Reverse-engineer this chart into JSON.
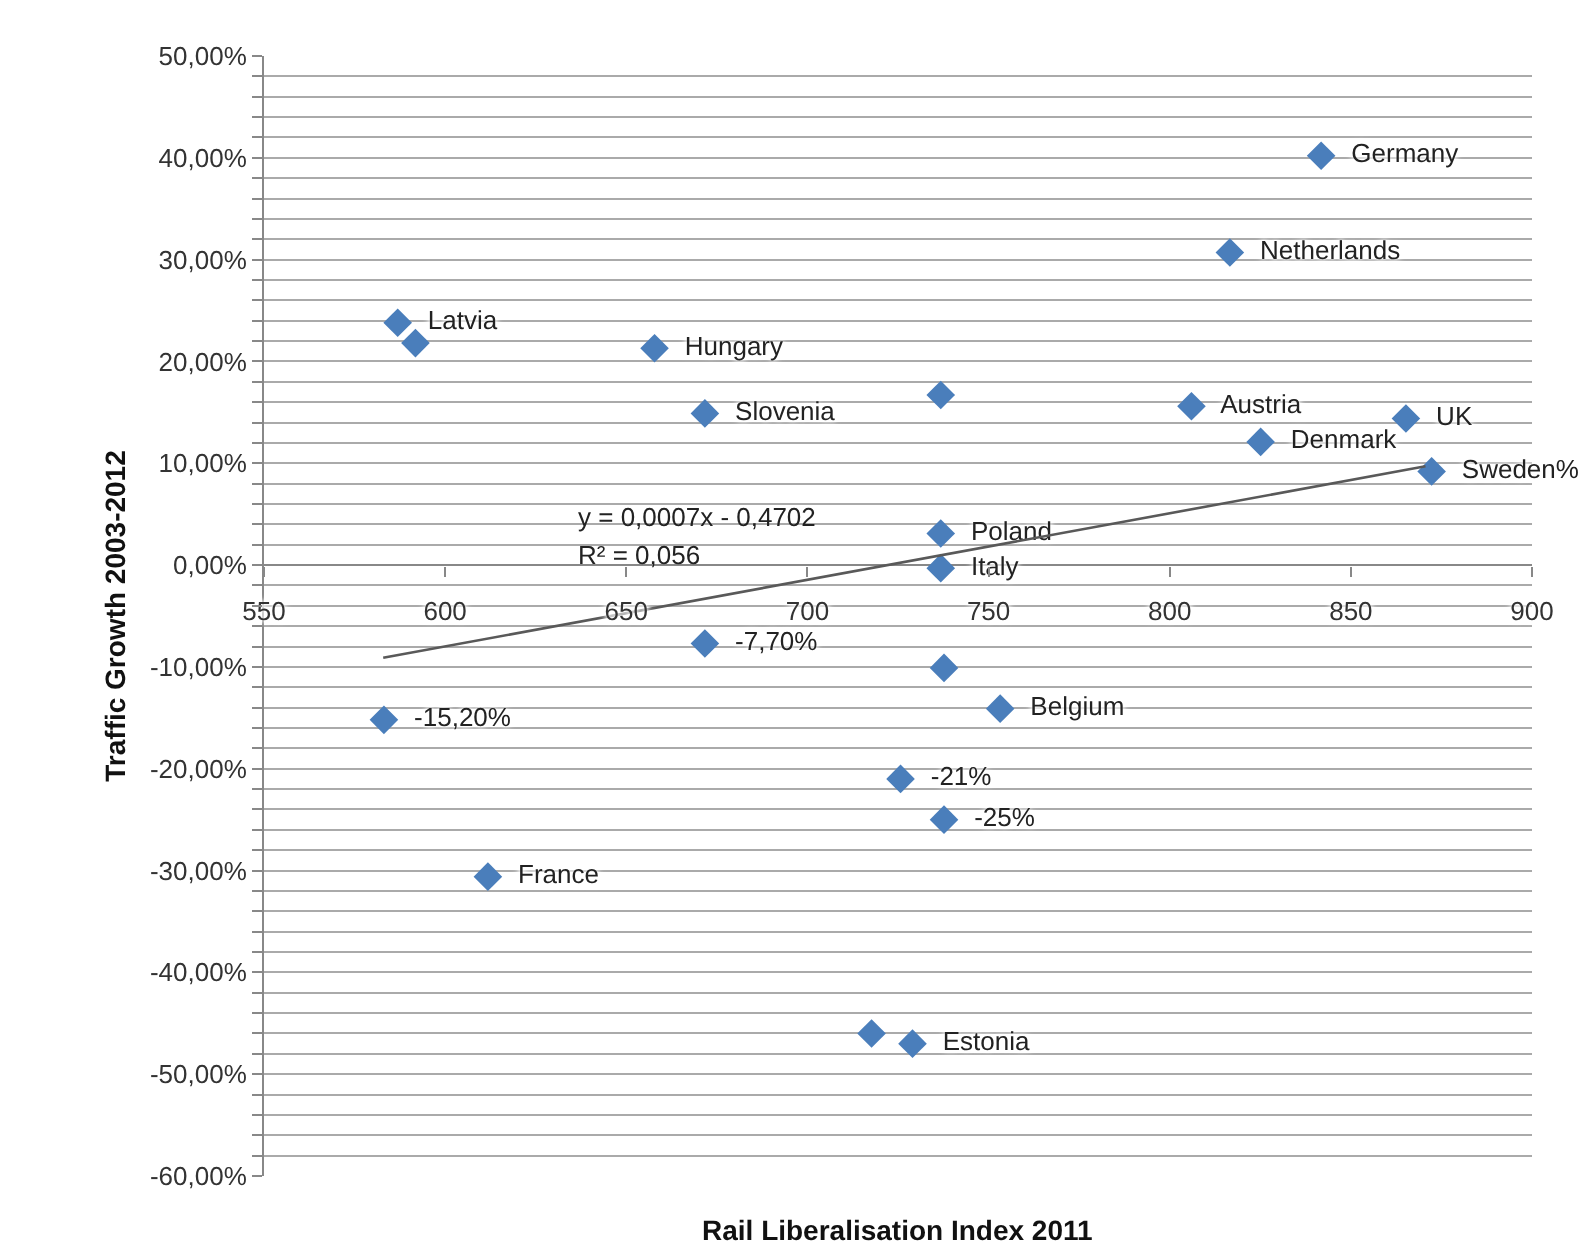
{
  "chart_data": {
    "type": "scatter",
    "xlabel": "Rail Liberalisation Index 2011",
    "ylabel": "Traffic Growth 2003-2012",
    "x": [
      841.8,
      816.6,
      586.9,
      591.8,
      657.8,
      671.7,
      736.8,
      806,
      865.2,
      825.1,
      872.3,
      736.8,
      736.8,
      671.7,
      737.7,
      753.2,
      583.1,
      725.7,
      737.7,
      611.8,
      717.7,
      729
    ],
    "series": [
      {
        "type": "scatter",
        "color": "#4a7ebb",
        "marker": "diamond",
        "values": [
          40.2,
          30.7,
          23.8,
          21.8,
          21.3,
          14.9,
          16.7,
          15.6,
          14.4,
          12.1,
          9.2,
          3.1,
          -0.3,
          -7.7,
          -10.1,
          -14.1,
          -15.2,
          -21.0,
          -25.0,
          -30.6,
          -46.0,
          -47.0
        ],
        "value_labels": [
          "Germany",
          "Netherlands",
          "Latvia",
          null,
          "Hungary",
          "Slovenia",
          null,
          "Austria",
          "UK",
          "Denmark",
          "Sweden%",
          "Poland",
          "Italy",
          "-7,70%",
          null,
          "Belgium",
          "-15,20%",
          "-21%",
          "-25%",
          "France",
          null,
          "Estonia"
        ]
      },
      {
        "type": "line",
        "color": "#595959",
        "marker": "none",
        "line_style": "solid",
        "x": [
          582.9,
          870.6
        ],
        "values": [
          -9.1,
          9.7
        ]
      }
    ],
    "annotations": [
      "y = 0,0007x - 0,4702",
      "R² = 0,056"
    ],
    "xlim": [
      550,
      900
    ],
    "xticks": [
      550,
      600,
      650,
      700,
      750,
      800,
      850,
      900
    ],
    "ylim": [
      -60,
      50
    ],
    "yticks": [
      {
        "value": -60,
        "label": "-60,00%"
      },
      {
        "value": -58,
        "label": null
      },
      {
        "value": -56,
        "label": null
      },
      {
        "value": -54,
        "label": null
      },
      {
        "value": -52,
        "label": null
      },
      {
        "value": -50,
        "label": "-50,00%"
      },
      {
        "value": -48,
        "label": null
      },
      {
        "value": -46,
        "label": null
      },
      {
        "value": -44,
        "label": null
      },
      {
        "value": -42,
        "label": null
      },
      {
        "value": -40,
        "label": "-40,00%"
      },
      {
        "value": -38,
        "label": null
      },
      {
        "value": -36,
        "label": null
      },
      {
        "value": -34,
        "label": null
      },
      {
        "value": -32,
        "label": null
      },
      {
        "value": -30,
        "label": "-30,00%"
      },
      {
        "value": -28,
        "label": null
      },
      {
        "value": -26,
        "label": null
      },
      {
        "value": -24,
        "label": null
      },
      {
        "value": -22,
        "label": null
      },
      {
        "value": -20,
        "label": "-20,00%"
      },
      {
        "value": -18,
        "label": null
      },
      {
        "value": -16,
        "label": null
      },
      {
        "value": -14,
        "label": null
      },
      {
        "value": -12,
        "label": null
      },
      {
        "value": -10,
        "label": "-10,00%"
      },
      {
        "value": -8,
        "label": null
      },
      {
        "value": -6,
        "label": null
      },
      {
        "value": -4,
        "label": null
      },
      {
        "value": -2,
        "label": null
      },
      {
        "value": 0,
        "label": "0,00%"
      },
      {
        "value": 2,
        "label": null
      },
      {
        "value": 4,
        "label": null
      },
      {
        "value": 6,
        "label": null
      },
      {
        "value": 8,
        "label": null
      },
      {
        "value": 10,
        "label": "10,00%"
      },
      {
        "value": 12,
        "label": null
      },
      {
        "value": 14,
        "label": null
      },
      {
        "value": 16,
        "label": null
      },
      {
        "value": 18,
        "label": null
      },
      {
        "value": 20,
        "label": "20,00%"
      },
      {
        "value": 22,
        "label": null
      },
      {
        "value": 24,
        "label": null
      },
      {
        "value": 26,
        "label": null
      },
      {
        "value": 28,
        "label": null
      },
      {
        "value": 30,
        "label": "30,00%"
      },
      {
        "value": 32,
        "label": null
      },
      {
        "value": 34,
        "label": null
      },
      {
        "value": 36,
        "label": null
      },
      {
        "value": 38,
        "label": null
      },
      {
        "value": 40,
        "label": "40,00%"
      },
      {
        "value": 42,
        "label": null
      },
      {
        "value": 44,
        "label": null
      },
      {
        "value": 46,
        "label": null
      },
      {
        "value": 48,
        "label": null
      },
      {
        "value": 50,
        "label": "50,00%"
      }
    ],
    "grid": "y"
  }
}
